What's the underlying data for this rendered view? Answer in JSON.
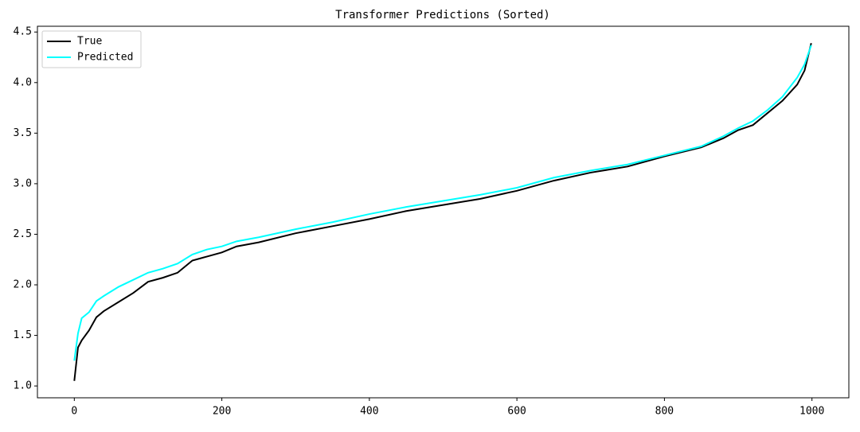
{
  "chart_data": {
    "type": "line",
    "title": "Transformer Predictions (Sorted)",
    "x": [
      0,
      5,
      10,
      20,
      30,
      40,
      60,
      80,
      100,
      120,
      140,
      160,
      180,
      200,
      220,
      250,
      300,
      350,
      400,
      450,
      500,
      550,
      600,
      650,
      700,
      750,
      800,
      850,
      880,
      900,
      920,
      940,
      960,
      980,
      990,
      999
    ],
    "series": [
      {
        "name": "True",
        "color": "#000000",
        "values": [
          1.05,
          1.38,
          1.45,
          1.55,
          1.68,
          1.74,
          1.83,
          1.92,
          2.03,
          2.07,
          2.12,
          2.24,
          2.28,
          2.32,
          2.38,
          2.42,
          2.51,
          2.58,
          2.65,
          2.73,
          2.79,
          2.85,
          2.93,
          3.03,
          3.11,
          3.17,
          3.27,
          3.36,
          3.45,
          3.53,
          3.58,
          3.7,
          3.82,
          3.98,
          4.12,
          4.39
        ]
      },
      {
        "name": "Predicted",
        "color": "#00ffff",
        "values": [
          1.25,
          1.52,
          1.67,
          1.73,
          1.84,
          1.89,
          1.98,
          2.05,
          2.12,
          2.16,
          2.21,
          2.3,
          2.35,
          2.38,
          2.43,
          2.47,
          2.55,
          2.62,
          2.7,
          2.77,
          2.83,
          2.89,
          2.96,
          3.06,
          3.13,
          3.19,
          3.28,
          3.37,
          3.47,
          3.55,
          3.62,
          3.73,
          3.86,
          4.05,
          4.18,
          4.37
        ]
      }
    ],
    "xlim": [
      -50,
      1050
    ],
    "ylim": [
      0.883,
      4.557
    ],
    "xticks": [
      0,
      200,
      400,
      600,
      800,
      1000
    ],
    "yticks": [
      {
        "value": 1.0,
        "label": "1.0"
      },
      {
        "value": 1.5,
        "label": "1.5"
      },
      {
        "value": 2.0,
        "label": "2.0"
      },
      {
        "value": 2.5,
        "label": "2.5"
      },
      {
        "value": 3.0,
        "label": "3.0"
      },
      {
        "value": 3.5,
        "label": "3.5"
      },
      {
        "value": 4.0,
        "label": "4.0"
      },
      {
        "value": 4.5,
        "label": "4.5"
      }
    ],
    "legend": "upper left"
  }
}
